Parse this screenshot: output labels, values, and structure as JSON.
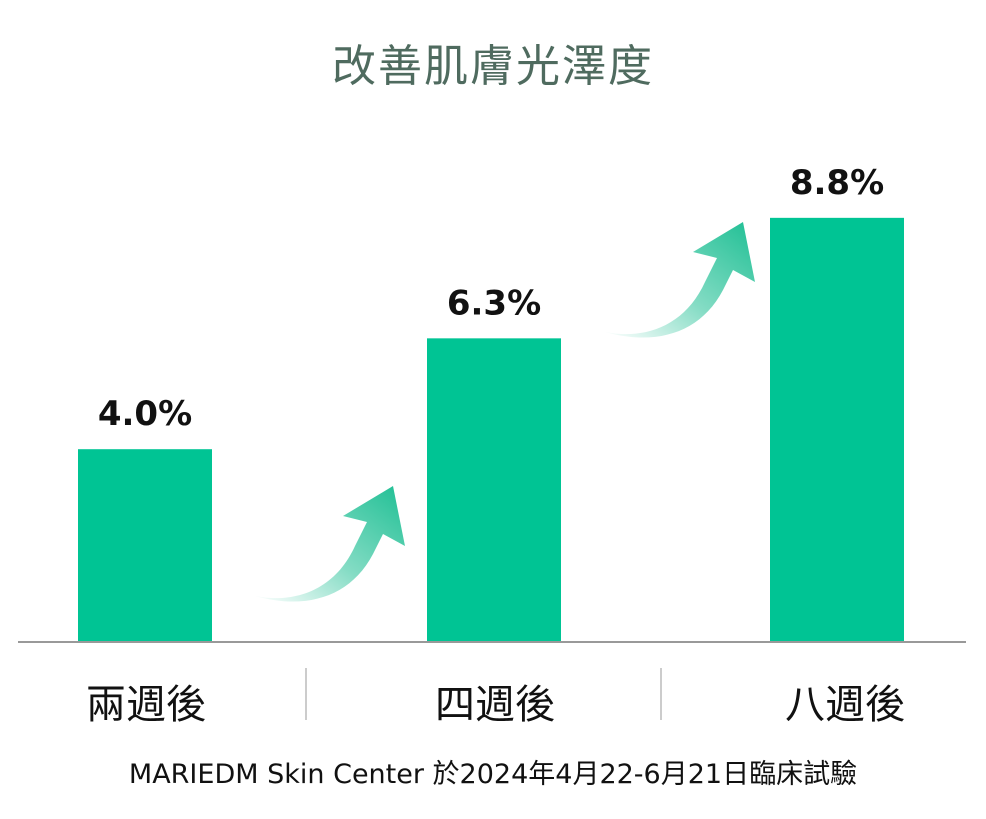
{
  "colors": {
    "bar": "#00c494",
    "arrow": "#1fbf94",
    "title": "#4f6b5f",
    "axis": "#999999"
  },
  "chart_data": {
    "type": "bar",
    "title": "改善肌膚光澤度",
    "categories": [
      "兩週後",
      "四週後",
      "八週後"
    ],
    "values": [
      4.0,
      6.3,
      8.8
    ],
    "value_labels": [
      "4.0%",
      "6.3%",
      "8.8%"
    ],
    "unit": "%",
    "ylim": [
      0,
      10
    ],
    "grid": false,
    "legend": "none"
  },
  "footer": "MARIEDM Skin Center 於2024年4月22-6月21日臨床試驗"
}
